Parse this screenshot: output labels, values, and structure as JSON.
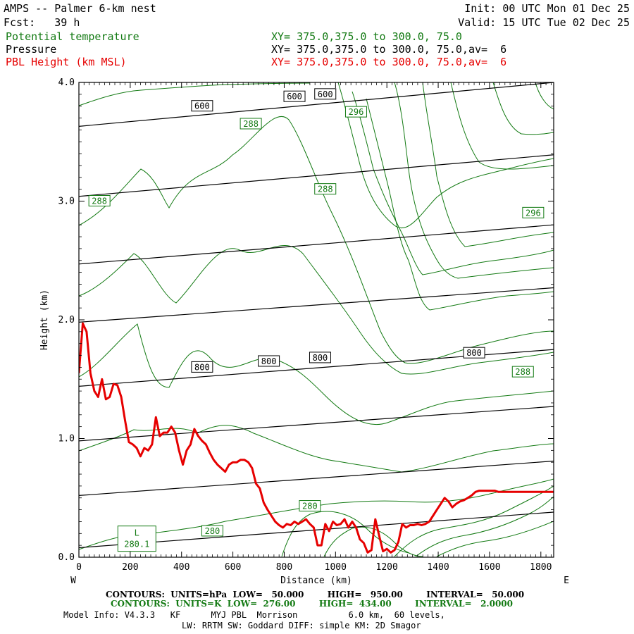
{
  "header": {
    "title": "AMPS -- Palmer 6-km nest",
    "forecast": "Fcst:   39 h",
    "init": "Init: 00 UTC Mon 01 Dec 25",
    "valid": "Valid: 15 UTC Tue 02 Dec 25",
    "fields": [
      {
        "name": "Potential temperature",
        "xy": "XY= 375.0,375.0 to 300.0, 75.0",
        "color": "#137a13"
      },
      {
        "name": "Pressure",
        "xy": "XY= 375.0,375.0 to 300.0, 75.0,av=  6",
        "color": "#000000"
      },
      {
        "name": "PBL Height (km MSL)",
        "xy": "XY= 375.0,375.0 to 300.0, 75.0,av=  6",
        "color": "#e60000"
      }
    ]
  },
  "footer": {
    "pressure_contours": "CONTOURS:  UNITS=hPa  LOW=   50.000        HIGH=   950.00        INTERVAL=   50.000",
    "theta_contours": "CONTOURS:  UNITS=K  LOW=  276.00        HIGH=  434.00        INTERVAL=   2.0000",
    "model_info": "Model Info: V4.3.3   KF      MYJ PBL  Morrison          6.0 km,  60 levels,",
    "model_info2": "LW: RRTM SW: Goddard DIFF: simple KM: 2D Smagor"
  },
  "chart_data": {
    "type": "line",
    "xlabel": "Distance (km)",
    "ylabel": "Height (km)",
    "xlim": [
      0,
      1850
    ],
    "ylim": [
      0,
      4.0
    ],
    "x_ticks": [
      "0",
      "200",
      "400",
      "600",
      "800",
      "1000",
      "1200",
      "1400",
      "1600",
      "1800"
    ],
    "y_ticks": [
      "0.0",
      "1.0",
      "2.0",
      "3.0",
      "4.0"
    ],
    "x_start_label": "W",
    "x_end_label": "E",
    "low_label": "L",
    "low_value": "280.1",
    "series": [
      {
        "name": "PBL Height (km MSL)",
        "color": "#e60000",
        "x": [
          0,
          15,
          30,
          45,
          60,
          75,
          90,
          105,
          120,
          135,
          150,
          165,
          180,
          195,
          210,
          225,
          240,
          255,
          270,
          285,
          300,
          315,
          330,
          345,
          360,
          375,
          390,
          405,
          420,
          435,
          450,
          465,
          480,
          495,
          510,
          525,
          540,
          555,
          570,
          585,
          600,
          615,
          630,
          645,
          660,
          675,
          690,
          705,
          720,
          735,
          750,
          765,
          780,
          795,
          810,
          825,
          840,
          855,
          870,
          885,
          900,
          915,
          930,
          945,
          960,
          975,
          990,
          1005,
          1020,
          1035,
          1050,
          1065,
          1080,
          1095,
          1110,
          1125,
          1140,
          1155,
          1170,
          1185,
          1200,
          1215,
          1230,
          1245,
          1260,
          1275,
          1290,
          1305,
          1320,
          1335,
          1350,
          1365,
          1380,
          1395,
          1410,
          1425,
          1440,
          1455,
          1470,
          1485,
          1500,
          1515,
          1530,
          1545,
          1560,
          1575,
          1590,
          1605,
          1620,
          1635,
          1650,
          1665,
          1680,
          1695,
          1710,
          1725,
          1740,
          1755,
          1770,
          1785,
          1800,
          1815,
          1830,
          1850
        ],
        "values": [
          1.55,
          1.97,
          1.9,
          1.55,
          1.4,
          1.35,
          1.5,
          1.33,
          1.35,
          1.46,
          1.45,
          1.35,
          1.15,
          0.97,
          0.95,
          0.92,
          0.85,
          0.92,
          0.9,
          0.95,
          1.18,
          1.02,
          1.05,
          1.05,
          1.1,
          1.05,
          0.9,
          0.78,
          0.9,
          0.95,
          1.08,
          1.02,
          0.98,
          0.95,
          0.88,
          0.82,
          0.78,
          0.75,
          0.72,
          0.78,
          0.8,
          0.8,
          0.82,
          0.82,
          0.8,
          0.75,
          0.62,
          0.58,
          0.46,
          0.4,
          0.35,
          0.3,
          0.27,
          0.25,
          0.28,
          0.27,
          0.3,
          0.28,
          0.3,
          0.32,
          0.28,
          0.25,
          0.1,
          0.1,
          0.28,
          0.22,
          0.3,
          0.27,
          0.28,
          0.32,
          0.25,
          0.3,
          0.25,
          0.15,
          0.12,
          0.04,
          0.06,
          0.32,
          0.18,
          0.05,
          0.07,
          0.04,
          0.06,
          0.13,
          0.28,
          0.25,
          0.27,
          0.27,
          0.28,
          0.27,
          0.28,
          0.3,
          0.35,
          0.4,
          0.45,
          0.5,
          0.47,
          0.42,
          0.45,
          0.47,
          0.48,
          0.5,
          0.52,
          0.55,
          0.56,
          0.56,
          0.56,
          0.56,
          0.56,
          0.55,
          0.55,
          0.55,
          0.55,
          0.55,
          0.55,
          0.55,
          0.55,
          0.55,
          0.55,
          0.55,
          0.55,
          0.55,
          0.55,
          0.55
        ]
      }
    ],
    "isobars": [
      {
        "x": [
          0,
          1850
        ],
        "values": [
          0.08,
          0.38
        ]
      },
      {
        "x": [
          0,
          1850
        ],
        "values": [
          0.52,
          0.81
        ]
      },
      {
        "x": [
          0,
          1850
        ],
        "values": [
          0.98,
          1.27
        ]
      },
      {
        "x": [
          0,
          1850
        ],
        "values": [
          1.44,
          1.75
        ]
      },
      {
        "x": [
          0,
          1850
        ],
        "values": [
          1.98,
          2.27
        ]
      },
      {
        "x": [
          0,
          1850
        ],
        "values": [
          2.47,
          2.8
        ]
      },
      {
        "x": [
          0,
          1850
        ],
        "values": [
          3.04,
          3.39
        ]
      },
      {
        "x": [
          0,
          1850
        ],
        "values": [
          3.63,
          4.0
        ]
      }
    ],
    "pressure_labels": [
      {
        "text": "600",
        "x": 480,
        "y": 3.8
      },
      {
        "text": "600",
        "x": 840,
        "y": 3.88
      },
      {
        "text": "600",
        "x": 960,
        "y": 3.9
      },
      {
        "text": "800",
        "x": 480,
        "y": 1.6
      },
      {
        "text": "800",
        "x": 740,
        "y": 1.65
      },
      {
        "text": "800",
        "x": 940,
        "y": 1.68
      },
      {
        "text": "800",
        "x": 1540,
        "y": 1.72
      }
    ],
    "theta_labels": [
      {
        "text": "296",
        "x": 1080,
        "y": 3.75
      },
      {
        "text": "288",
        "x": 670,
        "y": 3.65
      },
      {
        "text": "288",
        "x": 80,
        "y": 3.0
      },
      {
        "text": "288",
        "x": 960,
        "y": 3.1
      },
      {
        "text": "296",
        "x": 1770,
        "y": 2.9
      },
      {
        "text": "288",
        "x": 1730,
        "y": 1.56
      },
      {
        "text": "280",
        "x": 900,
        "y": 0.43
      },
      {
        "text": "280",
        "x": 520,
        "y": 0.22
      }
    ]
  }
}
